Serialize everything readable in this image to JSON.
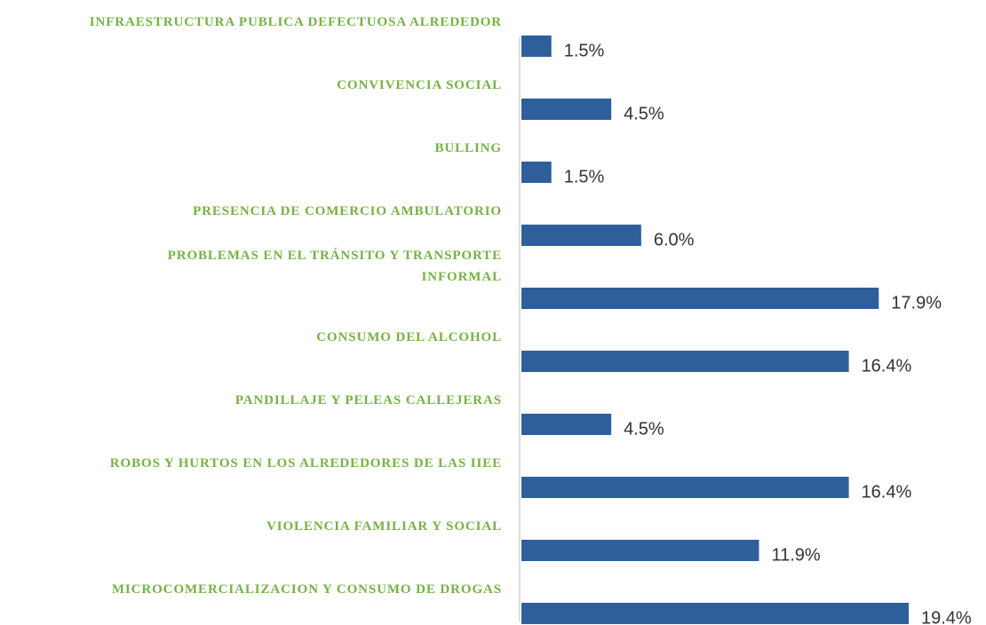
{
  "chart_data": {
    "type": "barh",
    "categories": [
      "INFRAESTRUCTURA PUBLICA DEFECTUOSA ALREDEDOR",
      "CONVIVENCIA SOCIAL ",
      "BULLING",
      "PRESENCIA DE COMERCIO AMBULATORIO",
      "PROBLEMAS EN EL TRÁNSITO Y TRANSPORTE\nINFORMAL",
      "CONSUMO DEL ALCOHOL",
      "PANDILLAJE Y PELEAS CALLEJERAS ",
      "ROBOS Y HURTOS EN LOS ALREDEDORES DE LAS IIEE",
      "VIOLENCIA FAMILIAR Y SOCIAL",
      "MICROCOMERCIALIZACION Y CONSUMO DE DROGAS"
    ],
    "values": [
      1.5,
      4.5,
      1.5,
      6.0,
      17.9,
      16.4,
      4.5,
      16.4,
      11.9,
      19.4
    ],
    "value_labels": [
      "1.5%",
      "4.5%",
      "1.5%",
      "6.0%",
      "17.9%",
      "16.4%",
      "4.5%",
      "16.4%",
      "11.9%",
      "19.4%"
    ],
    "color": "#2e5f9a"
  }
}
